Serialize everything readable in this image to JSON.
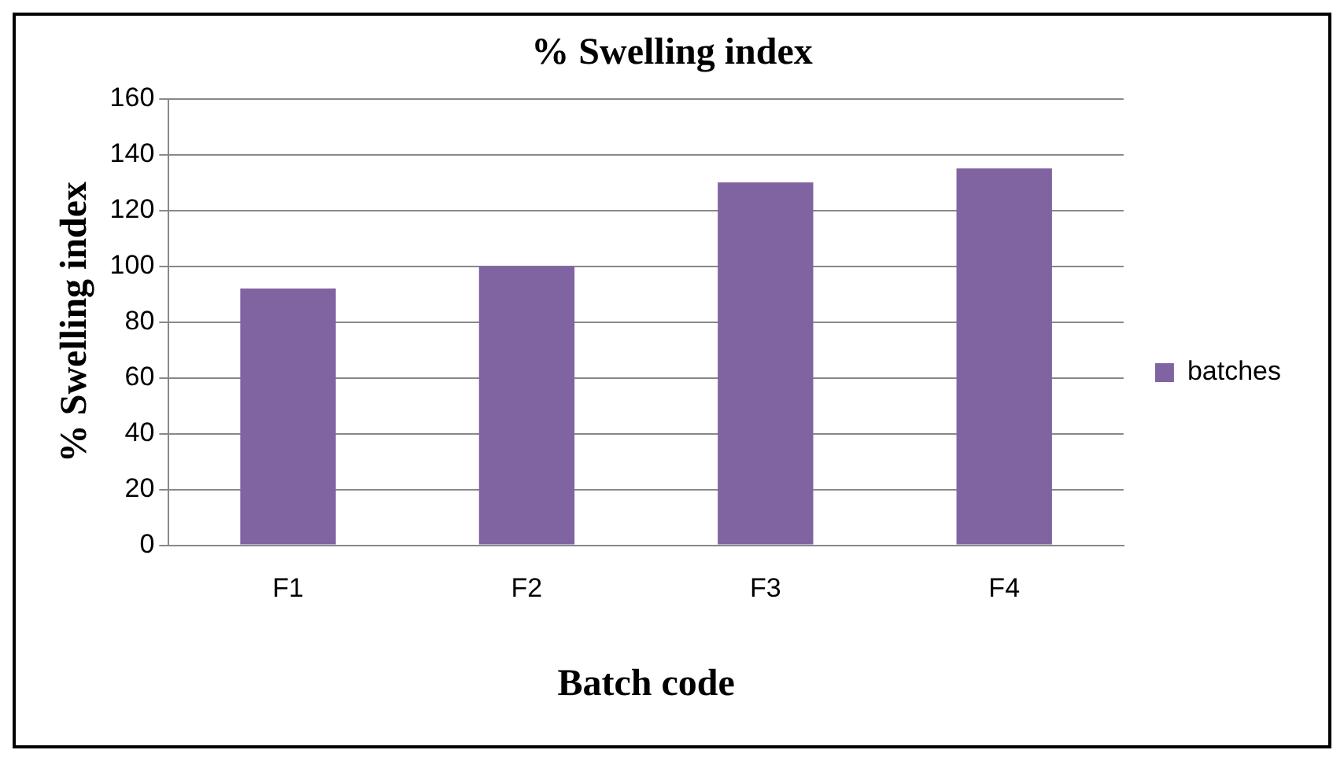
{
  "chart_data": {
    "type": "bar",
    "title": "% Swelling index",
    "xlabel": "Batch code",
    "ylabel": "% Swelling index",
    "categories": [
      "F1",
      "F2",
      "F3",
      "F4"
    ],
    "series": [
      {
        "name": "batches",
        "color": "#8064a2",
        "values": [
          92,
          100,
          130,
          135
        ]
      }
    ],
    "ylim": [
      0,
      160
    ],
    "yticks": [
      0,
      20,
      40,
      60,
      80,
      100,
      120,
      140,
      160
    ],
    "grid": "y",
    "legend": "right"
  }
}
